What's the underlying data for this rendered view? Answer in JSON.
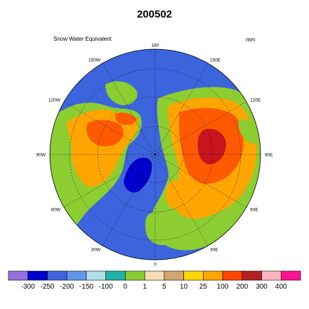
{
  "header": {
    "title": "200502",
    "variable": "Snow Water Equivalent",
    "units": "mm"
  },
  "map": {
    "projection": "north-polar-stereographic",
    "longitude_labels": [
      "180",
      "150E",
      "120E",
      "90E",
      "60E",
      "30E",
      "0",
      "30W",
      "60W",
      "90W",
      "120W",
      "150W"
    ],
    "colors": {
      "ocean": "#3c64dc",
      "land_no_snow": "#8ccd32",
      "greenland": "#0000cc",
      "snow_light": "#ffa500",
      "snow_mid": "#ff5a00",
      "snow_heavy": "#c8141e",
      "snow_trace": "#f5deb3",
      "snow_faint": "#d2a46e"
    }
  },
  "colorbar": {
    "colors": [
      "#9370db",
      "#0000cd",
      "#3c64dc",
      "#6495ed",
      "#b0e0e6",
      "#20b2aa",
      "#87cd32",
      "#f5deb3",
      "#d2a46e",
      "#ffd700",
      "#ffa500",
      "#ff4500",
      "#b22222",
      "#ffb6c1",
      "#ff1493"
    ],
    "labels": [
      "-300",
      "-250",
      "-200",
      "-150",
      "-100",
      "0",
      "1",
      "5",
      "10",
      "25",
      "100",
      "200",
      "300",
      "400"
    ]
  }
}
